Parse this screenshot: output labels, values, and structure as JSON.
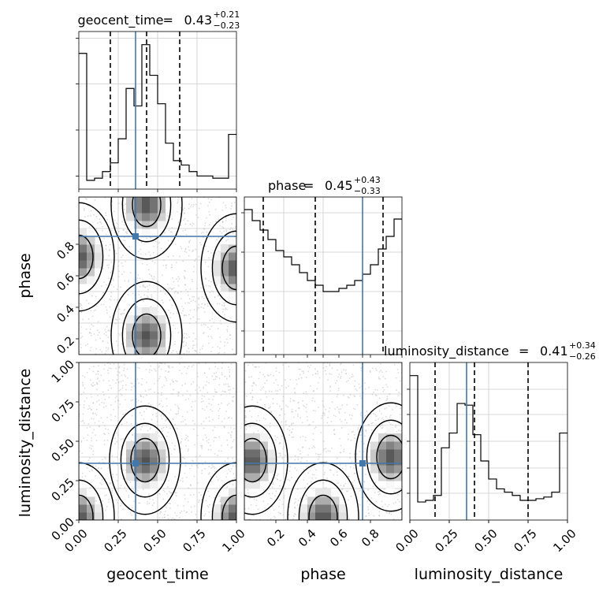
{
  "chart_data": [
    {
      "type": "histogram",
      "parameter": "geocent_time",
      "title_name": "geocent_time",
      "title_value": "0.43",
      "title_plus": "+0.21",
      "title_minus": "−0.23",
      "bin_edges": [
        0.0,
        0.05,
        0.1,
        0.15,
        0.2,
        0.25,
        0.3,
        0.35,
        0.4,
        0.45,
        0.5,
        0.55,
        0.6,
        0.65,
        0.7,
        0.75,
        0.8,
        0.85,
        0.9,
        0.95,
        1.0
      ],
      "density": [
        0.62,
        0.04,
        0.05,
        0.08,
        0.12,
        0.23,
        0.46,
        0.38,
        0.66,
        0.52,
        0.39,
        0.21,
        0.13,
        0.11,
        0.08,
        0.06,
        0.06,
        0.05,
        0.05,
        0.25
      ],
      "ylim": [
        0,
        0.72
      ],
      "xlim": [
        0,
        1
      ],
      "quantiles": [
        0.2,
        0.43,
        0.64
      ],
      "truth": 0.36,
      "xticks": [
        "0.00",
        "0.25",
        "0.50",
        "0.75",
        "1.00"
      ]
    },
    {
      "type": "histogram",
      "parameter": "phase",
      "title_name": "phase",
      "title_value": "0.45",
      "title_plus": "+0.43",
      "title_minus": "−0.33",
      "bin_edges": [
        0.0,
        0.05,
        0.1,
        0.15,
        0.2,
        0.25,
        0.3,
        0.35,
        0.4,
        0.45,
        0.5,
        0.55,
        0.6,
        0.65,
        0.7,
        0.75,
        0.8,
        0.85,
        0.9,
        0.95,
        1.0
      ],
      "density": [
        0.92,
        0.85,
        0.79,
        0.73,
        0.66,
        0.62,
        0.57,
        0.52,
        0.47,
        0.44,
        0.4,
        0.4,
        0.42,
        0.44,
        0.47,
        0.51,
        0.57,
        0.67,
        0.75,
        0.86
      ],
      "ylim": [
        0,
        1.0
      ],
      "xlim": [
        0,
        1
      ],
      "quantiles": [
        0.12,
        0.45,
        0.88
      ],
      "truth": 0.75,
      "xticks": [
        "0.2",
        "0.4",
        "0.6",
        "0.8"
      ]
    },
    {
      "type": "histogram",
      "parameter": "luminosity_distance",
      "title_name": "luminosity_distance",
      "title_value": "0.41",
      "title_plus": "+0.34",
      "title_minus": "−0.26",
      "bin_edges": [
        0.0,
        0.05,
        0.1,
        0.15,
        0.2,
        0.25,
        0.3,
        0.35,
        0.4,
        0.45,
        0.5,
        0.55,
        0.6,
        0.65,
        0.7,
        0.75,
        0.8,
        0.85,
        0.9,
        0.95,
        1.0
      ],
      "density": [
        0.88,
        0.11,
        0.12,
        0.15,
        0.44,
        0.53,
        0.71,
        0.7,
        0.52,
        0.36,
        0.25,
        0.19,
        0.17,
        0.15,
        0.12,
        0.12,
        0.13,
        0.14,
        0.17,
        0.53
      ],
      "ylim": [
        0,
        0.96
      ],
      "xlim": [
        0,
        1
      ],
      "quantiles": [
        0.16,
        0.41,
        0.75
      ],
      "truth": 0.36,
      "xticks": [
        "0.00",
        "0.25",
        "0.50",
        "0.75",
        "1.00"
      ]
    },
    {
      "type": "heatmap",
      "x_param": "geocent_time",
      "y_param": "phase",
      "xlim": [
        0,
        1
      ],
      "ylim": [
        0,
        1
      ],
      "truth": [
        0.36,
        0.75
      ],
      "yticks": [
        "0.2",
        "0.4",
        "0.6",
        "0.8"
      ],
      "ylabel": "phase",
      "density_peaks": [
        [
          0.43,
          0.95
        ],
        [
          0.43,
          0.12
        ],
        [
          0.0,
          0.62
        ],
        [
          1.0,
          0.55
        ]
      ]
    },
    {
      "type": "heatmap",
      "x_param": "geocent_time",
      "y_param": "luminosity_distance",
      "xlim": [
        0,
        1
      ],
      "ylim": [
        0,
        1
      ],
      "truth": [
        0.36,
        0.36
      ],
      "xticks": [
        "0.00",
        "0.25",
        "0.50",
        "0.75",
        "1.00"
      ],
      "yticks": [
        "0.00",
        "0.25",
        "0.50",
        "0.75",
        "1.00"
      ],
      "xlabel": "geocent_time",
      "ylabel": "luminosity_distance",
      "density_peaks": [
        [
          0.42,
          0.38
        ],
        [
          0.0,
          0.02
        ],
        [
          1.0,
          0.02
        ]
      ]
    },
    {
      "type": "heatmap",
      "x_param": "phase",
      "y_param": "luminosity_distance",
      "xlim": [
        0,
        1
      ],
      "ylim": [
        0,
        1
      ],
      "truth": [
        0.75,
        0.36
      ],
      "xticks": [
        "0.2",
        "0.4",
        "0.6",
        "0.8"
      ],
      "xlabel": "phase",
      "density_peaks": [
        [
          0.05,
          0.38
        ],
        [
          0.93,
          0.4
        ],
        [
          0.5,
          0.02
        ]
      ]
    },
    {
      "type": "histogram-axis",
      "parameter": "luminosity_distance",
      "xlabel": "luminosity_distance"
    }
  ],
  "colors": {
    "truth": "#4477aa",
    "hist": "#000000",
    "grid": "#cccccc",
    "scatter": "#c0c0c0"
  }
}
